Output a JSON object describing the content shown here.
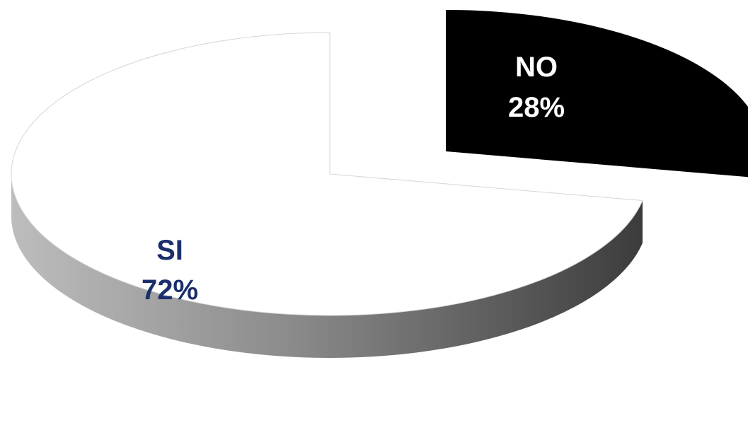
{
  "chart_data": {
    "type": "pie",
    "style": "3d-exploded",
    "slices": [
      {
        "category": "SI",
        "value": 72,
        "display": "72%",
        "fill": "#ffffff",
        "label_color": "#1a2f6b"
      },
      {
        "category": "NO",
        "value": 28,
        "display": "28%",
        "fill": "#000000",
        "label_color": "#ffffff"
      }
    ],
    "title": "",
    "legend": "none"
  }
}
